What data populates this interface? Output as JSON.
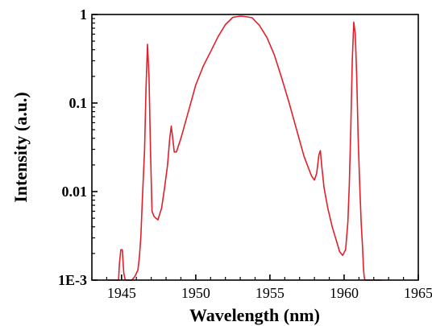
{
  "chart_data": {
    "type": "line",
    "title": "",
    "xlabel": "Wavelength (nm)",
    "ylabel": "Intensity (a.u.)",
    "xlim": [
      1943,
      1965
    ],
    "ylim": [
      0.001,
      1
    ],
    "yscale": "log",
    "grid": false,
    "legend": "none",
    "line_color": "#e0202a",
    "xticks": [
      1945,
      1950,
      1955,
      1960,
      1965
    ],
    "xtick_labels": [
      "1945",
      "1950",
      "1955",
      "1960",
      "1965"
    ],
    "yticks": [
      0.001,
      0.01,
      0.1,
      1
    ],
    "ytick_labels": [
      "1E-3",
      "0.01",
      "0.1",
      "1"
    ],
    "series": [
      {
        "x": [
          1944.1,
          1944.8,
          1944.85,
          1944.95,
          1945.05,
          1945.15,
          1945.25,
          1945.3,
          1945.4,
          1945.7,
          1945.9,
          1946.1,
          1946.2,
          1946.3,
          1946.4,
          1946.55,
          1946.65,
          1946.75,
          1946.85,
          1946.95,
          1947.05,
          1947.2,
          1947.45,
          1947.7,
          1947.9,
          1948.1,
          1948.25,
          1948.35,
          1948.45,
          1948.55,
          1948.7,
          1949.0,
          1949.5,
          1950.0,
          1950.5,
          1951.0,
          1951.5,
          1952.0,
          1952.5,
          1953.0,
          1953.3,
          1953.8,
          1954.3,
          1954.8,
          1955.3,
          1955.8,
          1956.3,
          1956.8,
          1957.3,
          1957.8,
          1958.0,
          1958.15,
          1958.3,
          1958.4,
          1958.5,
          1958.65,
          1958.9,
          1959.2,
          1959.5,
          1959.7,
          1959.9,
          1960.1,
          1960.25,
          1960.35,
          1960.45,
          1960.55,
          1960.65,
          1960.75,
          1960.85,
          1960.95,
          1961.05,
          1961.15,
          1961.25,
          1961.3,
          1961.35,
          1961.4,
          1961.6,
          1962.0,
          1962.5
        ],
        "y": [
          0.001,
          0.001,
          0.0015,
          0.0022,
          0.0022,
          0.0012,
          0.001,
          0.001,
          0.001,
          0.001,
          0.0011,
          0.0013,
          0.0018,
          0.003,
          0.008,
          0.03,
          0.15,
          0.46,
          0.2,
          0.03,
          0.006,
          0.0052,
          0.0048,
          0.0065,
          0.011,
          0.02,
          0.04,
          0.055,
          0.04,
          0.028,
          0.028,
          0.04,
          0.08,
          0.16,
          0.26,
          0.38,
          0.56,
          0.77,
          0.93,
          0.96,
          0.95,
          0.92,
          0.75,
          0.55,
          0.35,
          0.19,
          0.1,
          0.05,
          0.025,
          0.015,
          0.0135,
          0.016,
          0.026,
          0.029,
          0.019,
          0.011,
          0.0065,
          0.004,
          0.0027,
          0.0021,
          0.0019,
          0.0022,
          0.0045,
          0.012,
          0.05,
          0.3,
          0.82,
          0.6,
          0.2,
          0.04,
          0.012,
          0.0045,
          0.0022,
          0.0014,
          0.0011,
          0.001,
          0.001,
          0.001,
          0.001
        ]
      }
    ]
  }
}
